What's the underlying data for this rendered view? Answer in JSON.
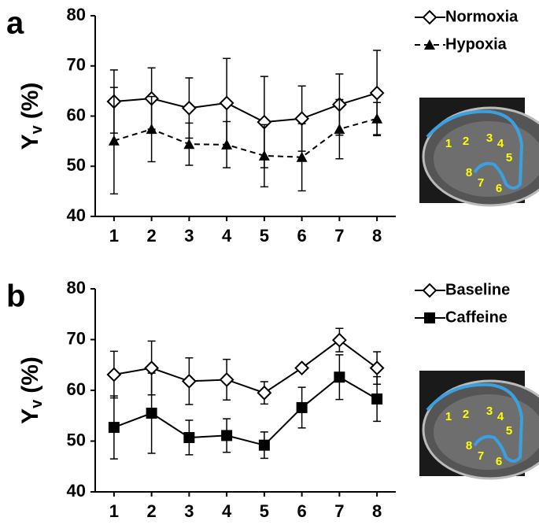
{
  "chart_data": [
    {
      "type": "line",
      "panel": "a",
      "ylabel": "Y",
      "ylabel_sub": "v",
      "ylabel_suffix": "(%)",
      "categories": [
        "1",
        "2",
        "3",
        "4",
        "5",
        "6",
        "7",
        "8"
      ],
      "ylim": [
        40,
        80
      ],
      "yticks": [
        40,
        50,
        60,
        70,
        80
      ],
      "series": [
        {
          "name": "Normoxia",
          "color": "#000000",
          "marker": "diamond-open",
          "dash": false,
          "values": [
            62.9,
            63.5,
            61.6,
            62.6,
            58.8,
            59.5,
            62.3,
            64.6
          ],
          "errors": [
            6.3,
            6.1,
            6.0,
            8.9,
            9.1,
            6.5,
            6.1,
            8.5
          ]
        },
        {
          "name": "Hypoxia",
          "color": "#000000",
          "marker": "triangle",
          "dash": true,
          "values": [
            55.1,
            57.4,
            54.4,
            54.3,
            52.1,
            51.8,
            57.4,
            59.5
          ],
          "errors": [
            10.6,
            6.5,
            4.2,
            4.6,
            6.2,
            6.7,
            5.9,
            3.2
          ]
        }
      ],
      "inset_labels": [
        "1",
        "2",
        "3",
        "4",
        "5",
        "6",
        "7",
        "8"
      ]
    },
    {
      "type": "line",
      "panel": "b",
      "ylabel": "Y",
      "ylabel_sub": "v",
      "ylabel_suffix": "(%)",
      "categories": [
        "1",
        "2",
        "3",
        "4",
        "5",
        "6",
        "7",
        "8"
      ],
      "ylim": [
        40,
        80
      ],
      "yticks": [
        40,
        50,
        60,
        70,
        80
      ],
      "series": [
        {
          "name": "Baseline",
          "color": "#000000",
          "marker": "diamond-open",
          "dash": false,
          "values": [
            63.1,
            64.4,
            61.8,
            62.1,
            59.5,
            64.4,
            69.9,
            64.4
          ],
          "errors": [
            4.6,
            5.3,
            4.6,
            4.0,
            2.2,
            0.5,
            2.3,
            3.2
          ]
        },
        {
          "name": "Caffeine",
          "color": "#000000",
          "marker": "square",
          "dash": false,
          "values": [
            52.7,
            55.5,
            50.7,
            51.1,
            49.2,
            56.6,
            62.6,
            58.3
          ],
          "errors": [
            6.2,
            7.9,
            3.4,
            3.3,
            2.6,
            4.0,
            4.4,
            4.4
          ]
        }
      ],
      "inset_labels": [
        "1",
        "2",
        "3",
        "4",
        "5",
        "6",
        "7",
        "8"
      ]
    }
  ]
}
